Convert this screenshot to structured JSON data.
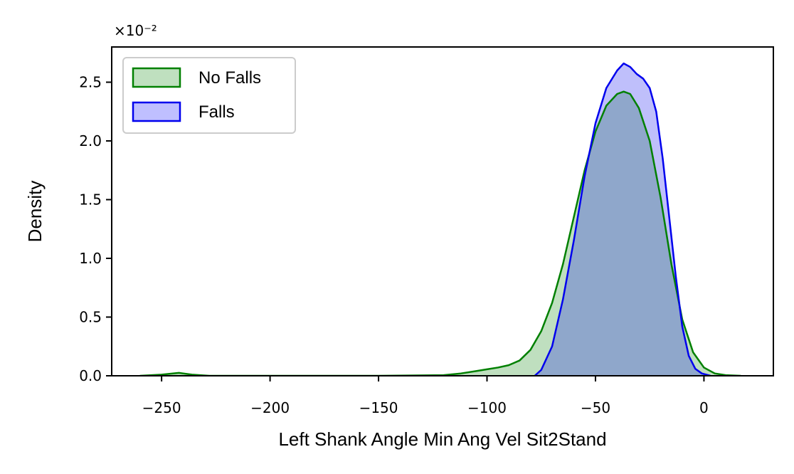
{
  "chart_data": {
    "type": "area",
    "title": "",
    "xlabel": "Left Shank Angle Min Ang Vel Sit2Stand",
    "ylabel": "Density",
    "y_scale_multiplier": "×10⁻²",
    "xlim": [
      -273,
      32
    ],
    "ylim": [
      0,
      2.8
    ],
    "x_ticks": [
      -250,
      -200,
      -150,
      -100,
      -50,
      0
    ],
    "x_tick_labels": [
      "−250",
      "−200",
      "−150",
      "−100",
      "−50",
      "0"
    ],
    "y_ticks": [
      0.0,
      0.5,
      1.0,
      1.5,
      2.0,
      2.5
    ],
    "y_tick_labels": [
      "0.0",
      "0.5",
      "1.0",
      "1.5",
      "2.0",
      "2.5"
    ],
    "grid": false,
    "legend_position": "top-left",
    "series": [
      {
        "name": "No Falls",
        "color": "#008000",
        "fill": "#bfe0bf",
        "points": [
          [
            -260,
            0.0
          ],
          [
            -250,
            0.01
          ],
          [
            -242,
            0.025
          ],
          [
            -236,
            0.01
          ],
          [
            -228,
            0.0
          ],
          [
            -200,
            0.0
          ],
          [
            -150,
            0.0
          ],
          [
            -120,
            0.005
          ],
          [
            -112,
            0.02
          ],
          [
            -105,
            0.04
          ],
          [
            -100,
            0.055
          ],
          [
            -95,
            0.07
          ],
          [
            -90,
            0.09
          ],
          [
            -85,
            0.13
          ],
          [
            -80,
            0.22
          ],
          [
            -75,
            0.38
          ],
          [
            -70,
            0.62
          ],
          [
            -65,
            0.95
          ],
          [
            -60,
            1.35
          ],
          [
            -55,
            1.75
          ],
          [
            -50,
            2.08
          ],
          [
            -45,
            2.3
          ],
          [
            -40,
            2.4
          ],
          [
            -37,
            2.42
          ],
          [
            -34,
            2.4
          ],
          [
            -30,
            2.28
          ],
          [
            -25,
            2.0
          ],
          [
            -20,
            1.52
          ],
          [
            -15,
            0.95
          ],
          [
            -10,
            0.48
          ],
          [
            -5,
            0.2
          ],
          [
            0,
            0.07
          ],
          [
            5,
            0.02
          ],
          [
            10,
            0.005
          ],
          [
            17,
            0.0
          ]
        ]
      },
      {
        "name": "Falls",
        "color": "#0000ee",
        "fill": "#bfbfff",
        "points": [
          [
            -78,
            0.0
          ],
          [
            -75,
            0.05
          ],
          [
            -70,
            0.25
          ],
          [
            -65,
            0.65
          ],
          [
            -60,
            1.15
          ],
          [
            -55,
            1.7
          ],
          [
            -50,
            2.15
          ],
          [
            -45,
            2.45
          ],
          [
            -40,
            2.6
          ],
          [
            -37,
            2.66
          ],
          [
            -34,
            2.63
          ],
          [
            -31,
            2.57
          ],
          [
            -28,
            2.53
          ],
          [
            -25,
            2.45
          ],
          [
            -22,
            2.25
          ],
          [
            -19,
            1.85
          ],
          [
            -16,
            1.35
          ],
          [
            -13,
            0.85
          ],
          [
            -10,
            0.42
          ],
          [
            -7,
            0.17
          ],
          [
            -4,
            0.06
          ],
          [
            -1,
            0.02
          ],
          [
            3,
            0.0
          ]
        ]
      }
    ]
  }
}
